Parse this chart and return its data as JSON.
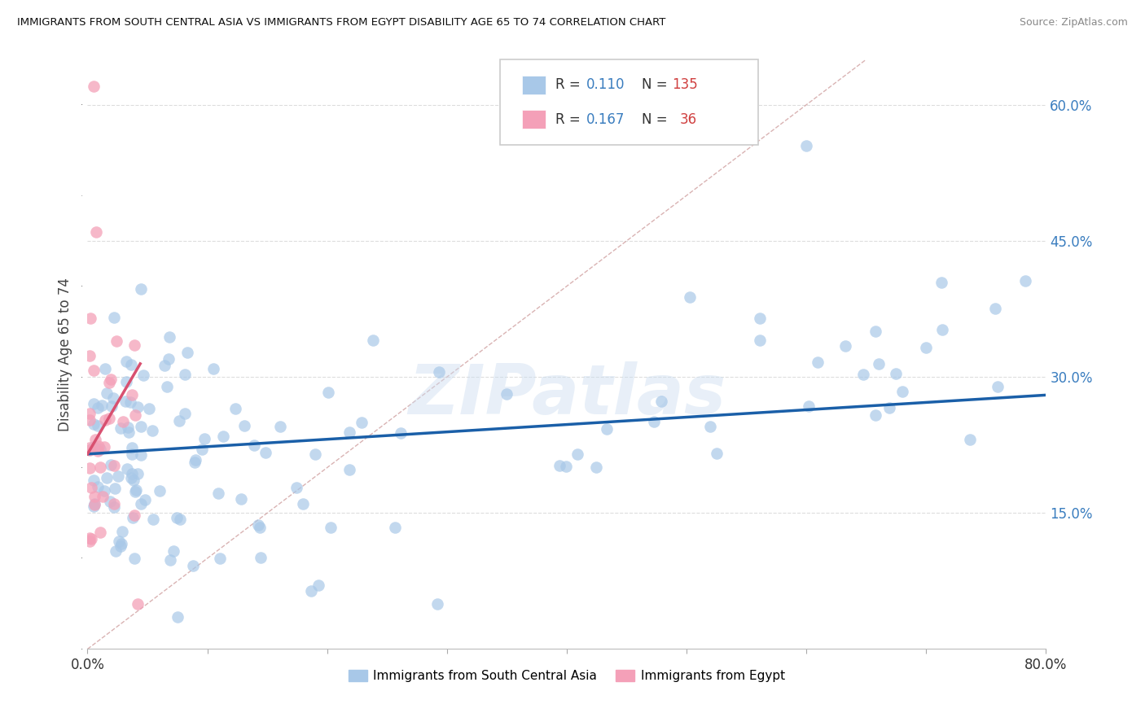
{
  "title": "IMMIGRANTS FROM SOUTH CENTRAL ASIA VS IMMIGRANTS FROM EGYPT DISABILITY AGE 65 TO 74 CORRELATION CHART",
  "source": "Source: ZipAtlas.com",
  "ylabel": "Disability Age 65 to 74",
  "xlim": [
    0,
    0.8
  ],
  "ylim": [
    0,
    0.65
  ],
  "yticks_right": [
    0.15,
    0.3,
    0.45,
    0.6
  ],
  "ytick_labels_right": [
    "15.0%",
    "30.0%",
    "45.0%",
    "60.0%"
  ],
  "legend_label1": "Immigrants from South Central Asia",
  "legend_label2": "Immigrants from Egypt",
  "color_blue": "#a8c8e8",
  "color_pink": "#f4a0b8",
  "color_blue_line": "#1a5fa8",
  "color_pink_line": "#d85070",
  "color_diag": "#d0a0a0",
  "watermark_text": "ZIPatlas",
  "bg_color": "#ffffff",
  "R_blue": 0.11,
  "N_blue": 135,
  "R_pink": 0.167,
  "N_pink": 36
}
